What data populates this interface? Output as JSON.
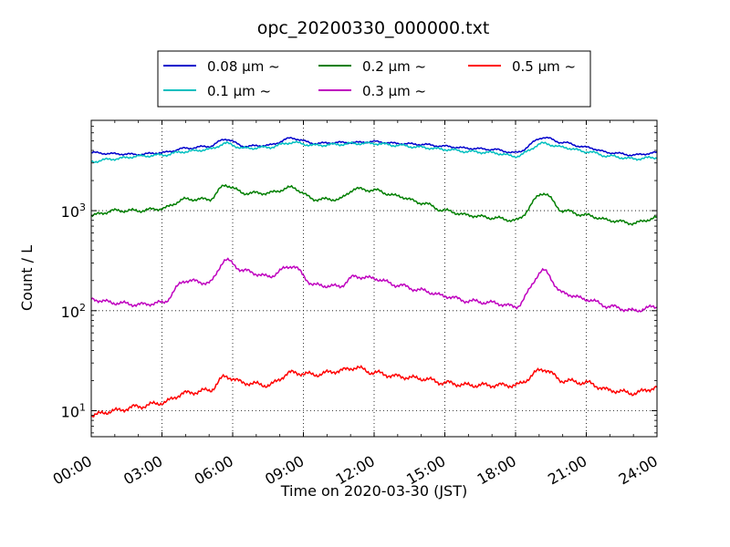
{
  "chart_data": {
    "type": "line",
    "title": "opc_20200330_000000.txt",
    "xlabel": "Time on 2020-03-30 (JST)",
    "ylabel": "Count / L",
    "x_unit": "hours",
    "xlim": [
      0,
      24
    ],
    "ylim": [
      5.5,
      8000
    ],
    "yscale": "log",
    "grid": true,
    "legend_position": "top",
    "xtick_labels": [
      "00:00",
      "03:00",
      "06:00",
      "09:00",
      "12:00",
      "15:00",
      "18:00",
      "21:00",
      "24:00"
    ],
    "ytick_labels": [
      {
        "base": "10",
        "exp": "1"
      },
      {
        "base": "10",
        "exp": "2"
      },
      {
        "base": "10",
        "exp": "3"
      }
    ],
    "x": [
      0,
      1,
      2,
      3,
      4,
      5,
      5.7,
      6.5,
      7.5,
      8.5,
      9.5,
      10.5,
      11.2,
      12,
      13,
      14,
      15,
      16,
      17,
      18,
      19.2,
      20,
      21,
      22,
      23,
      24
    ],
    "series": [
      {
        "name": "0.08 μm ~",
        "color": "#0000cc",
        "values": [
          3800,
          3700,
          3650,
          3800,
          4200,
          4400,
          5200,
          4400,
          4500,
          5300,
          4700,
          4800,
          4800,
          4900,
          4700,
          4600,
          4400,
          4200,
          4100,
          3800,
          5400,
          4800,
          4300,
          3800,
          3600,
          3800
        ]
      },
      {
        "name": "0.1 μm ~",
        "color": "#00bfbf",
        "values": [
          3100,
          3300,
          3500,
          3600,
          3900,
          4100,
          4700,
          4200,
          4300,
          4800,
          4500,
          4600,
          4700,
          4700,
          4500,
          4300,
          4100,
          3900,
          3800,
          3500,
          4700,
          4300,
          3900,
          3500,
          3300,
          3400
        ]
      },
      {
        "name": "0.2 μm ~",
        "color": "#007f00",
        "values": [
          900,
          1000,
          1000,
          1050,
          1300,
          1300,
          1800,
          1500,
          1500,
          1700,
          1300,
          1300,
          1650,
          1600,
          1400,
          1200,
          1000,
          900,
          850,
          800,
          1500,
          1000,
          900,
          800,
          750,
          850
        ]
      },
      {
        "name": "0.3 μm ~",
        "color": "#bf00bf",
        "values": [
          130,
          120,
          115,
          120,
          200,
          190,
          320,
          250,
          220,
          280,
          180,
          175,
          220,
          210,
          180,
          160,
          140,
          125,
          120,
          110,
          250,
          150,
          130,
          110,
          100,
          110
        ]
      },
      {
        "name": "0.5 μm ~",
        "color": "#ff0000",
        "values": [
          9,
          10,
          11,
          12,
          15,
          16,
          22,
          19,
          18,
          24,
          23,
          25,
          27,
          24,
          22,
          21,
          19,
          18,
          18,
          18,
          26,
          20,
          19,
          16,
          15,
          17
        ]
      }
    ]
  }
}
